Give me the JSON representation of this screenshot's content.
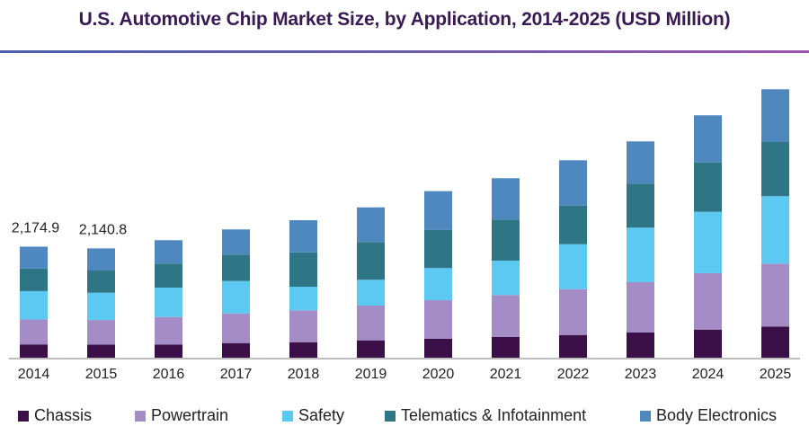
{
  "chart_data": {
    "type": "bar",
    "stacked": true,
    "title": "U.S. Automotive Chip Market Size, by Application, 2014-2025 (USD Million)",
    "xlabel": "",
    "ylabel": "",
    "ylim": [
      0,
      5400
    ],
    "grid": false,
    "legend_position": "bottom",
    "categories": [
      "2014",
      "2015",
      "2016",
      "2017",
      "2018",
      "2019",
      "2020",
      "2021",
      "2022",
      "2023",
      "2024",
      "2025"
    ],
    "series": [
      {
        "name": "Chassis",
        "color": "#3b0f47",
        "values": [
          260.2,
          256.1,
          259,
          287,
          304,
          340,
          370,
          405,
          445,
          493,
          551,
          611
        ]
      },
      {
        "name": "Powertrain",
        "color": "#a48dc6",
        "values": [
          488.1,
          481.4,
          539,
          581,
          623,
          681,
          757,
          822,
          898,
          986,
          1104,
          1232
        ]
      },
      {
        "name": "Safety",
        "color": "#5bc9f2",
        "values": [
          555.6,
          534.5,
          575,
          634,
          463,
          505,
          628,
          674,
          880,
          1068,
          1202,
          1320
        ]
      },
      {
        "name": "Telematics & Infotainment",
        "color": "#2e7585",
        "values": [
          441.8,
          435.2,
          470,
          517,
          674,
          739,
          750,
          804,
          757,
          862,
          968,
          1061
        ]
      },
      {
        "name": "Body Electronics",
        "color": "#4e88bf",
        "values": [
          429.2,
          433.6,
          458,
          493,
          628,
          679,
          757,
          810,
          887,
          827,
          922,
          1033
        ]
      }
    ],
    "data_labels": [
      {
        "category": "2014",
        "text": "2,174.9"
      },
      {
        "category": "2015",
        "text": "2,140.8"
      }
    ]
  }
}
